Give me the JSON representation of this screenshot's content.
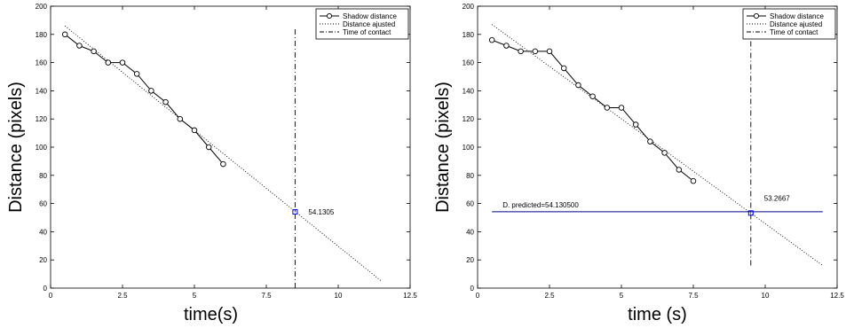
{
  "chart_data": [
    {
      "type": "line",
      "title": "",
      "xlabel": "time(s)",
      "ylabel": "Distance (pixels)",
      "xlim": [
        0,
        12.5
      ],
      "ylim": [
        0,
        200
      ],
      "xticks": [
        "0",
        "2.5",
        "5",
        "7.5",
        "10",
        "12.5"
      ],
      "yticks": [
        "0",
        "20",
        "40",
        "60",
        "80",
        "100",
        "120",
        "140",
        "160",
        "180",
        "200"
      ],
      "grid": false,
      "legend_position": "top-right",
      "legend": [
        "Shadow distance",
        "Distance ajusted",
        "Time of contact"
      ],
      "series": [
        {
          "name": "Shadow distance",
          "x": [
            0.5,
            1.0,
            1.5,
            2.0,
            2.5,
            3.0,
            3.5,
            4.0,
            4.5,
            5.0,
            5.5,
            6.0
          ],
          "y": [
            180,
            172,
            168,
            160,
            160,
            152,
            140,
            132,
            120,
            112,
            100,
            88
          ]
        },
        {
          "name": "Distance ajusted",
          "x": [
            0.5,
            11.5
          ],
          "y": [
            186,
            5
          ]
        }
      ],
      "contact_time": 8.5,
      "contact_line_y": [
        0,
        185
      ],
      "marker": {
        "x": 8.5,
        "y": 54.1305,
        "label": "54.1305"
      }
    },
    {
      "type": "line",
      "title": "",
      "xlabel": "time (s)",
      "ylabel": "Distance (pixels)",
      "xlim": [
        0,
        12.5
      ],
      "ylim": [
        0,
        200
      ],
      "xticks": [
        "0",
        "2.5",
        "5",
        "7.5",
        "10",
        "12.5"
      ],
      "yticks": [
        "0",
        "20",
        "40",
        "60",
        "80",
        "100",
        "120",
        "140",
        "160",
        "180",
        "200"
      ],
      "grid": false,
      "legend_position": "top-right",
      "legend": [
        "Shadow distance",
        "Distance ajusted",
        "Time of contact"
      ],
      "series": [
        {
          "name": "Shadow distance",
          "x": [
            0.5,
            1.0,
            1.5,
            2.0,
            2.5,
            3.0,
            3.5,
            4.0,
            4.5,
            5.0,
            5.5,
            6.0,
            6.5,
            7.0,
            7.5
          ],
          "y": [
            176,
            172,
            168,
            168,
            168,
            156,
            144,
            136,
            128,
            128,
            116,
            104,
            96,
            84,
            76
          ]
        },
        {
          "name": "Distance ajusted",
          "x": [
            0.5,
            12.0
          ],
          "y": [
            187,
            16
          ]
        }
      ],
      "contact_time": 9.5,
      "contact_line_y": [
        16,
        185
      ],
      "marker": {
        "x": 9.5,
        "y": 53.2667,
        "label": "53.2667"
      },
      "hline": {
        "y": 54.1305,
        "x": [
          0.5,
          12.0
        ],
        "label": "D. predicted=54.130500",
        "color": "#00008b"
      }
    }
  ]
}
